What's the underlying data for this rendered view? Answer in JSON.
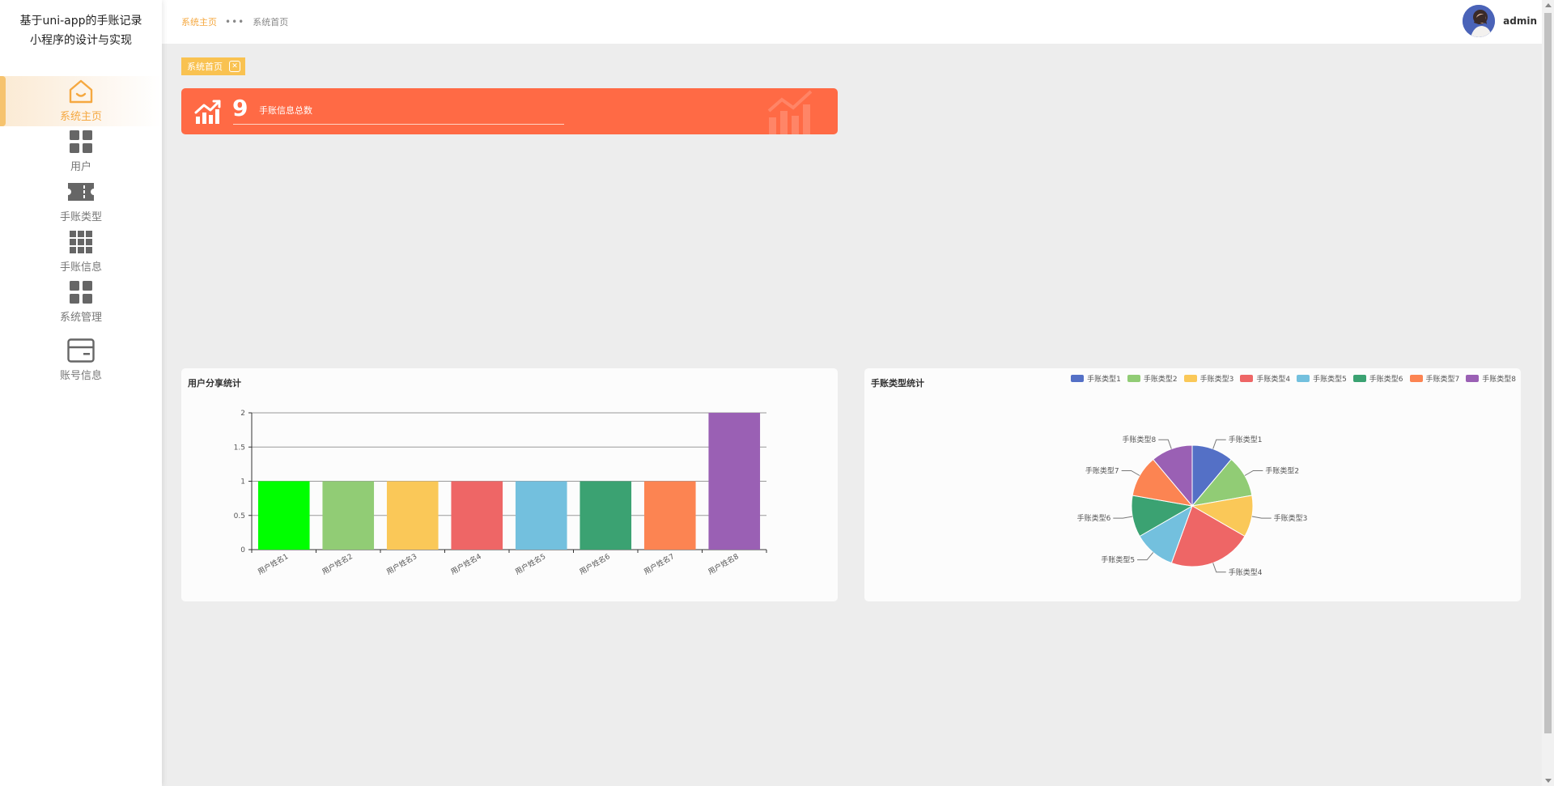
{
  "app": {
    "title_line1": "基于uni-app的手账记录",
    "title_line2": "小程序的设计与实现"
  },
  "sidebar": {
    "items": [
      {
        "label": "系统主页",
        "icon": "home-icon",
        "active": true
      },
      {
        "label": "用户",
        "icon": "grid-four-icon"
      },
      {
        "label": "手账类型",
        "icon": "ticket-icon"
      },
      {
        "label": "手账信息",
        "icon": "grid-nine-icon"
      },
      {
        "label": "系统管理",
        "icon": "grid-four-icon"
      },
      {
        "label": "账号信息",
        "icon": "card-icon"
      }
    ]
  },
  "header": {
    "breadcrumb": {
      "first": "系统主页",
      "separator": "•••",
      "second": "系统首页"
    },
    "user": {
      "name": "admin"
    }
  },
  "tag": {
    "label": "系统首页",
    "close_icon": "close-icon"
  },
  "stat": {
    "value": "9",
    "title": "手账信息总数",
    "icon": "trend-chart-icon"
  },
  "colors": {
    "accent": "#f5a840",
    "stat_bg": "#ff6a45",
    "tag_bg": "#f9c251"
  },
  "chart_data": [
    {
      "type": "bar",
      "title": "用户分享统计",
      "categories": [
        "用户姓名1",
        "用户姓名2",
        "用户姓名3",
        "用户姓名4",
        "用户姓名5",
        "用户姓名6",
        "用户姓名7",
        "用户姓名8"
      ],
      "values": [
        1,
        1,
        1,
        1,
        1,
        1,
        1,
        2
      ],
      "colors": [
        "#00ff00",
        "#91cc75",
        "#fac858",
        "#ee6666",
        "#73c0de",
        "#3ba272",
        "#fc8452",
        "#9a60b4"
      ],
      "ylim": [
        0,
        2
      ],
      "yticks": [
        "0",
        "0.5",
        "1",
        "1.5",
        "2"
      ],
      "xlabel": "",
      "ylabel": "",
      "grid": true
    },
    {
      "type": "pie",
      "title": "手账类型统计",
      "labels": [
        "手账类型1",
        "手账类型2",
        "手账类型3",
        "手账类型4",
        "手账类型5",
        "手账类型6",
        "手账类型7",
        "手账类型8"
      ],
      "values": [
        1,
        1,
        1,
        2,
        1,
        1,
        1,
        1
      ],
      "colors": [
        "#5470c6",
        "#91cc75",
        "#fac858",
        "#ee6666",
        "#73c0de",
        "#3ba272",
        "#fc8452",
        "#9a60b4"
      ],
      "legend": "top-right"
    }
  ]
}
